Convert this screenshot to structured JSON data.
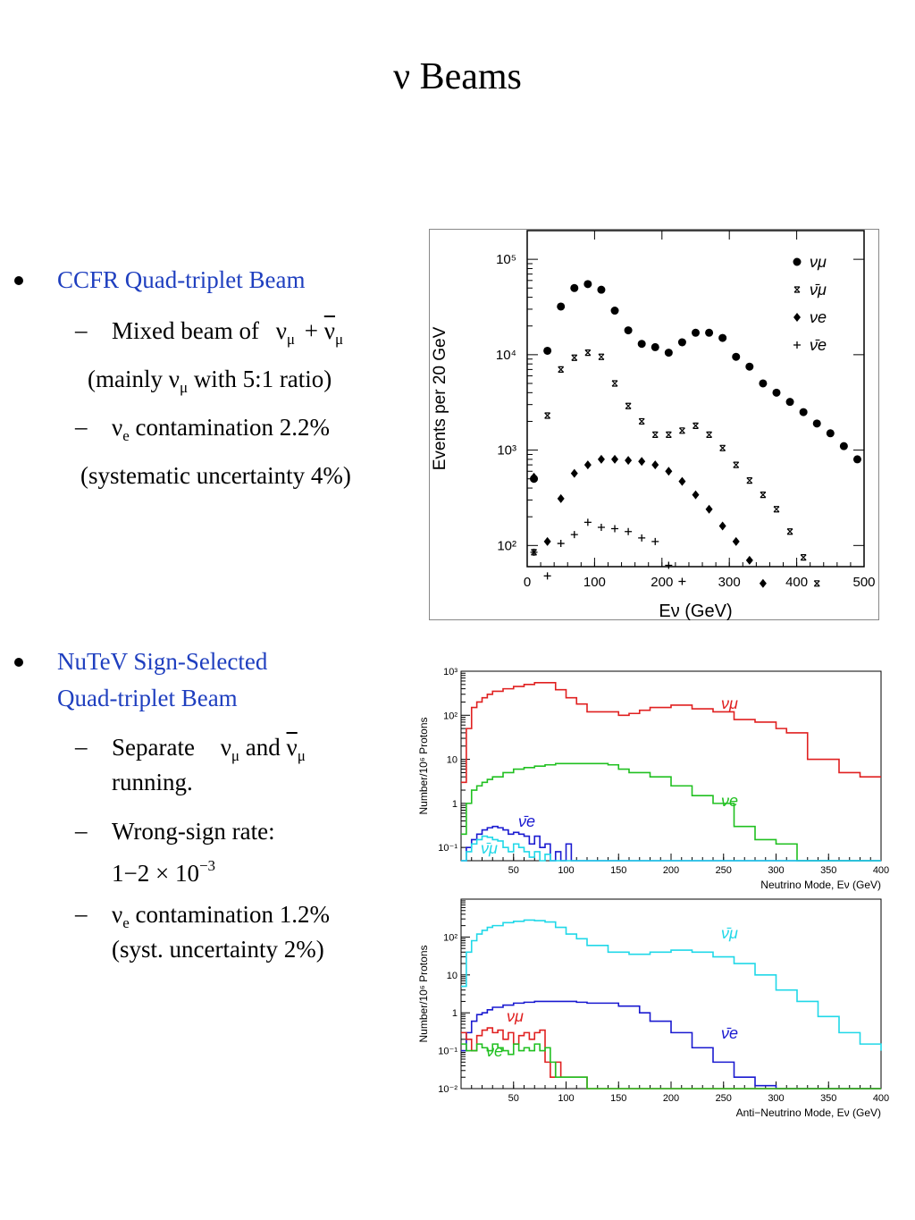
{
  "slide": {
    "title": "ν Beams"
  },
  "text": {
    "b1_title": "CCFR Quad-triplet Beam",
    "b1_s1": "Mixed beam of",
    "b1_s1_nu": "ν",
    "b1_s1_mu": "μ",
    "b1_s1_plus": "+",
    "b1_s1_nubar": "ν",
    "b1_s1_mubar": "μ",
    "b1_s1b_a": "(mainly ν",
    "b1_s1b_mu": "μ",
    "b1_s1b_b": " with 5:1 ratio)",
    "b1_s2_nu": "ν",
    "b1_s2_e": "e",
    "b1_s2_rest": " contamination 2.2%",
    "b1_s2b": "(systematic uncertainty 4%)",
    "b2_title_1": "NuTeV Sign-Selected",
    "b2_title_2": "Quad-triplet Beam",
    "b2_s1_a": "Separate",
    "b2_s1_nu": "ν",
    "b2_s1_mu": "μ",
    "b2_s1_and": " and ",
    "b2_s1_nubar": "ν",
    "b2_s1_mubar": "μ",
    "b2_s1_b": "running.",
    "b2_s2_a": "Wrong-sign rate:",
    "b2_s2_b": "1−2 × 10",
    "b2_s2_exp": "−3",
    "b2_s3_nu": "ν",
    "b2_s3_e": "e",
    "b2_s3_rest": " contamination 1.2%",
    "b2_s3b": "(syst. uncertainty 2%)"
  },
  "chart_data": [
    {
      "type": "scatter",
      "xlabel": "Eν (GeV)",
      "ylabel": "Events per 20 GeV",
      "xlim": [
        0,
        500
      ],
      "ylim": [
        60,
        200000
      ],
      "yscale": "log",
      "x_ticks": [
        "0",
        "100",
        "200",
        "300",
        "400",
        "500"
      ],
      "y_ticks": [
        "10²",
        "10³",
        "10⁴",
        "10⁵"
      ],
      "legend_position": "top-right",
      "series": [
        {
          "name": "νμ",
          "marker": "dot",
          "x": [
            10,
            30,
            50,
            70,
            90,
            110,
            130,
            150,
            170,
            190,
            210,
            230,
            250,
            270,
            290,
            310,
            330,
            350,
            370,
            390,
            410,
            430,
            450,
            470,
            490
          ],
          "y": [
            500,
            11000,
            32000,
            50000,
            55000,
            48000,
            29000,
            18000,
            13000,
            12000,
            10500,
            13500,
            17000,
            17000,
            15000,
            9500,
            7500,
            5000,
            4000,
            3200,
            2500,
            1900,
            1500,
            1100,
            800
          ]
        },
        {
          "name": "ν̄μ",
          "marker": "cross",
          "x": [
            10,
            30,
            50,
            70,
            90,
            110,
            130,
            150,
            170,
            190,
            210,
            230,
            250,
            270,
            290,
            310,
            330,
            350,
            370,
            390,
            410,
            430
          ],
          "y": [
            85,
            2300,
            7000,
            9300,
            10500,
            9500,
            5000,
            2900,
            2000,
            1450,
            1450,
            1600,
            1800,
            1450,
            1050,
            700,
            480,
            340,
            240,
            140,
            75,
            40
          ]
        },
        {
          "name": "νe",
          "marker": "diamond",
          "x": [
            10,
            30,
            50,
            70,
            90,
            110,
            130,
            150,
            170,
            190,
            210,
            230,
            250,
            270,
            290,
            310,
            330,
            350
          ],
          "y": [
            520,
            110,
            310,
            570,
            700,
            800,
            800,
            780,
            760,
            700,
            600,
            470,
            340,
            240,
            160,
            110,
            70,
            40
          ]
        },
        {
          "name": "ν̄e",
          "marker": "plus",
          "x": [
            10,
            30,
            50,
            70,
            90,
            110,
            130,
            150,
            170,
            190,
            210,
            230
          ],
          "y": [
            85,
            48,
            105,
            130,
            175,
            155,
            150,
            140,
            120,
            110,
            62,
            42
          ]
        }
      ]
    },
    {
      "type": "line",
      "step": true,
      "xlabel": "Neutrino Mode, Eν (GeV)",
      "ylabel": "Number/10⁶ Protons",
      "xlim": [
        0,
        400
      ],
      "ylim": [
        0.05,
        1000
      ],
      "yscale": "log",
      "x_ticks": [
        "50",
        "100",
        "150",
        "200",
        "250",
        "300",
        "350",
        "400"
      ],
      "y_ticks": [
        "10⁻¹",
        "1",
        "10",
        "10²",
        "10³"
      ],
      "series": [
        {
          "name": "νμ",
          "color": "#e02020",
          "x": [
            0,
            5,
            10,
            15,
            20,
            25,
            30,
            40,
            50,
            60,
            70,
            80,
            90,
            100,
            110,
            120,
            150,
            160,
            170,
            180,
            200,
            220,
            240,
            260,
            280,
            300,
            310,
            330,
            360,
            380,
            400
          ],
          "y": [
            3,
            50,
            150,
            200,
            250,
            300,
            350,
            400,
            450,
            500,
            550,
            550,
            380,
            250,
            180,
            120,
            100,
            110,
            130,
            150,
            170,
            140,
            120,
            80,
            70,
            50,
            40,
            10,
            5,
            4,
            4
          ]
        },
        {
          "name": "νe",
          "color": "#20c020",
          "x": [
            0,
            5,
            10,
            15,
            20,
            25,
            30,
            40,
            50,
            60,
            70,
            80,
            90,
            100,
            110,
            115,
            140,
            150,
            160,
            180,
            200,
            220,
            240,
            260,
            280,
            300,
            320
          ],
          "y": [
            0.2,
            1,
            2,
            2.5,
            3,
            3.5,
            4,
            5,
            6,
            6.5,
            7,
            7.5,
            8,
            8,
            8,
            8,
            7.5,
            6,
            5,
            4,
            2.5,
            1.5,
            1,
            0.3,
            0.15,
            0.12,
            0.05
          ]
        },
        {
          "name": "ν̄e",
          "color": "#1a1ad0",
          "x": [
            0,
            5,
            10,
            15,
            20,
            25,
            30,
            35,
            40,
            45,
            50,
            55,
            60,
            65,
            70,
            75,
            80,
            85,
            90,
            95,
            100,
            105,
            110,
            120
          ],
          "y": [
            0.05,
            0.1,
            0.15,
            0.2,
            0.25,
            0.28,
            0.3,
            0.28,
            0.25,
            0.2,
            0.22,
            0.2,
            0.18,
            0.12,
            0.18,
            0.1,
            0.12,
            0.05,
            0.08,
            0.05,
            0.12,
            0.05,
            0.05,
            0.05
          ]
        },
        {
          "name": "ν̄μ",
          "color": "#20d8e8",
          "x": [
            0,
            5,
            10,
            15,
            20,
            25,
            30,
            35,
            40,
            45,
            50,
            55,
            60,
            65,
            70,
            75,
            80,
            85,
            90
          ],
          "y": [
            0.05,
            0.08,
            0.12,
            0.15,
            0.18,
            0.17,
            0.15,
            0.14,
            0.1,
            0.08,
            0.12,
            0.1,
            0.08,
            0.06,
            0.08,
            0.05,
            0.07,
            0.05,
            0.05
          ]
        }
      ]
    },
    {
      "type": "line",
      "step": true,
      "xlabel": "Anti−Neutrino Mode, Eν (GeV)",
      "ylabel": "Number/10⁶ Protons",
      "xlim": [
        0,
        400
      ],
      "ylim": [
        0.01,
        1000
      ],
      "yscale": "log",
      "x_ticks": [
        "50",
        "100",
        "150",
        "200",
        "250",
        "300",
        "350",
        "400"
      ],
      "y_ticks": [
        "10⁻²",
        "10⁻¹",
        "1",
        "10",
        "10²"
      ],
      "series": [
        {
          "name": "ν̄μ",
          "color": "#20d8e8",
          "x": [
            0,
            5,
            10,
            15,
            20,
            25,
            30,
            40,
            50,
            60,
            70,
            80,
            90,
            100,
            110,
            120,
            140,
            160,
            180,
            200,
            220,
            240,
            260,
            280,
            300,
            320,
            340,
            360,
            380,
            400
          ],
          "y": [
            5,
            40,
            80,
            120,
            150,
            180,
            200,
            240,
            260,
            280,
            270,
            250,
            180,
            120,
            90,
            60,
            40,
            35,
            40,
            45,
            40,
            30,
            20,
            10,
            4,
            2,
            0.8,
            0.3,
            0.15,
            0.1
          ]
        },
        {
          "name": "ν̄e",
          "color": "#1a1ad0",
          "x": [
            0,
            5,
            10,
            15,
            20,
            25,
            30,
            40,
            50,
            60,
            70,
            80,
            90,
            100,
            110,
            120,
            130,
            150,
            170,
            180,
            200,
            220,
            240,
            260,
            280,
            300
          ],
          "y": [
            0.1,
            0.3,
            0.6,
            0.9,
            1,
            1.2,
            1.4,
            1.6,
            1.8,
            1.9,
            2,
            2,
            2,
            2,
            1.9,
            1.8,
            1.8,
            1.5,
            1,
            0.6,
            0.3,
            0.12,
            0.05,
            0.02,
            0.012,
            0.01
          ]
        },
        {
          "name": "νμ",
          "color": "#e02020",
          "x": [
            0,
            5,
            10,
            15,
            20,
            25,
            30,
            35,
            40,
            45,
            50,
            55,
            60,
            65,
            70,
            75,
            80,
            85,
            90,
            95,
            100,
            105,
            110,
            120
          ],
          "y": [
            0.3,
            0.2,
            0.1,
            0.25,
            0.35,
            0.4,
            0.3,
            0.35,
            0.2,
            0.3,
            0.15,
            0.25,
            0.3,
            0.2,
            0.3,
            0.35,
            0.05,
            0.02,
            0.05,
            0.02,
            0.02,
            0.02,
            0.02,
            0.01
          ]
        },
        {
          "name": "νe",
          "color": "#20c020",
          "x": [
            0,
            5,
            10,
            15,
            20,
            25,
            30,
            35,
            40,
            45,
            50,
            55,
            60,
            65,
            70,
            75,
            80,
            85,
            90,
            95,
            100,
            110,
            120
          ],
          "y": [
            0.15,
            0.1,
            0.1,
            0.15,
            0.12,
            0.1,
            0.15,
            0.12,
            0.1,
            0.08,
            0.15,
            0.1,
            0.12,
            0.1,
            0.15,
            0.1,
            0.12,
            0.05,
            0.02,
            0.02,
            0.02,
            0.02,
            0.01
          ]
        }
      ]
    }
  ]
}
